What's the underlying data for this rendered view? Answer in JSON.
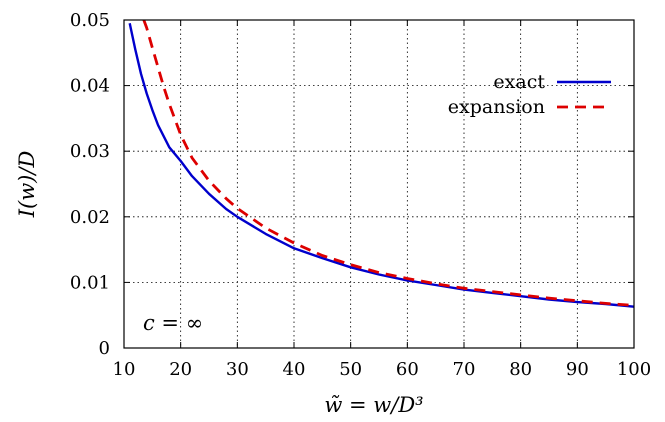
{
  "chart_data": {
    "type": "line",
    "title": "",
    "xlabel": "w̃ = w/D³",
    "ylabel": "I(w)/D",
    "xlim": [
      10,
      100
    ],
    "ylim": [
      0,
      0.05
    ],
    "xticks": [
      "10",
      "20",
      "30",
      "40",
      "50",
      "60",
      "70",
      "80",
      "90",
      "100"
    ],
    "yticks": [
      "0",
      "0.01",
      "0.02",
      "0.03",
      "0.04",
      "0.05"
    ],
    "grid": true,
    "legend_position": "top-right",
    "annotation": "c = ∞",
    "series": [
      {
        "name": "exact",
        "color": "#0000cc",
        "style": "solid",
        "x": [
          11,
          12,
          13,
          14,
          15,
          16,
          18,
          20,
          22,
          25,
          28,
          30,
          35,
          40,
          45,
          50,
          55,
          60,
          65,
          70,
          75,
          80,
          85,
          90,
          95,
          100
        ],
        "y": [
          0.0495,
          0.0455,
          0.0418,
          0.0388,
          0.0363,
          0.034,
          0.0306,
          0.0285,
          0.0262,
          0.0235,
          0.0212,
          0.02,
          0.0174,
          0.0152,
          0.0137,
          0.0123,
          0.0112,
          0.0103,
          0.0096,
          0.0089,
          0.0084,
          0.0079,
          0.0074,
          0.007,
          0.0067,
          0.0063
        ]
      },
      {
        "name": "expansion",
        "color": "#dd0000",
        "style": "dashed",
        "x": [
          13.5,
          14,
          15,
          16,
          17,
          18,
          20,
          22,
          25,
          28,
          30,
          35,
          40,
          45,
          50,
          55,
          60,
          65,
          70,
          75,
          80,
          85,
          90,
          95,
          100
        ],
        "y": [
          0.05,
          0.0488,
          0.0458,
          0.0428,
          0.0398,
          0.0372,
          0.0325,
          0.029,
          0.0255,
          0.0228,
          0.0213,
          0.0183,
          0.016,
          0.0141,
          0.0127,
          0.0115,
          0.0106,
          0.0098,
          0.0091,
          0.0086,
          0.0081,
          0.0076,
          0.0072,
          0.0068,
          0.0065
        ]
      }
    ]
  }
}
